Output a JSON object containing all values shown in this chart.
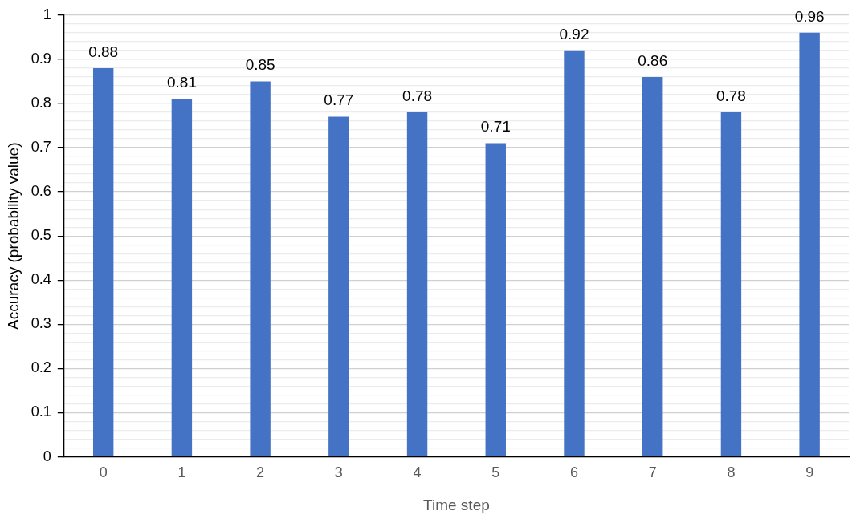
{
  "chart_data": {
    "type": "bar",
    "xlabel": "Time step",
    "ylabel": "Accuracy (probability value)",
    "categories": [
      "0",
      "1",
      "2",
      "3",
      "4",
      "5",
      "6",
      "7",
      "8",
      "9"
    ],
    "values": [
      0.88,
      0.81,
      0.85,
      0.77,
      0.78,
      0.71,
      0.92,
      0.86,
      0.78,
      0.96
    ],
    "color": "#4472c4",
    "data_labels": true,
    "ylim": [
      0,
      1
    ],
    "yticks": [
      0,
      {
        "value": 0.02,
        "label": null
      },
      {
        "value": 0.04,
        "label": null
      },
      {
        "value": 0.06,
        "label": null
      },
      {
        "value": 0.08,
        "label": null
      },
      0.1,
      {
        "value": 0.12,
        "label": null
      },
      {
        "value": 0.14,
        "label": null
      },
      {
        "value": 0.16,
        "label": null
      },
      {
        "value": 0.18,
        "label": null
      },
      0.2,
      {
        "value": 0.22,
        "label": null
      },
      {
        "value": 0.24,
        "label": null
      },
      {
        "value": 0.26,
        "label": null
      },
      {
        "value": 0.28,
        "label": null
      },
      0.3,
      {
        "value": 0.32,
        "label": null
      },
      {
        "value": 0.34,
        "label": null
      },
      {
        "value": 0.36,
        "label": null
      },
      {
        "value": 0.38,
        "label": null
      },
      0.4,
      {
        "value": 0.42,
        "label": null
      },
      {
        "value": 0.44,
        "label": null
      },
      {
        "value": 0.46,
        "label": null
      },
      {
        "value": 0.48,
        "label": null
      },
      0.5,
      {
        "value": 0.52,
        "label": null
      },
      {
        "value": 0.54,
        "label": null
      },
      {
        "value": 0.56,
        "label": null
      },
      {
        "value": 0.58,
        "label": null
      },
      0.6,
      {
        "value": 0.62,
        "label": null
      },
      {
        "value": 0.64,
        "label": null
      },
      {
        "value": 0.66,
        "label": null
      },
      {
        "value": 0.68,
        "label": null
      },
      0.7,
      {
        "value": 0.72,
        "label": null
      },
      {
        "value": 0.74,
        "label": null
      },
      {
        "value": 0.76,
        "label": null
      },
      {
        "value": 0.78,
        "label": null
      },
      0.8,
      {
        "value": 0.82,
        "label": null
      },
      {
        "value": 0.84,
        "label": null
      },
      {
        "value": 0.86,
        "label": null
      },
      {
        "value": 0.88,
        "label": null
      },
      0.9,
      {
        "value": 0.92,
        "label": null
      },
      {
        "value": 0.94,
        "label": null
      },
      {
        "value": 0.96,
        "label": null
      },
      {
        "value": 0.98,
        "label": null
      },
      1
    ],
    "grid": "y",
    "legend": false
  }
}
